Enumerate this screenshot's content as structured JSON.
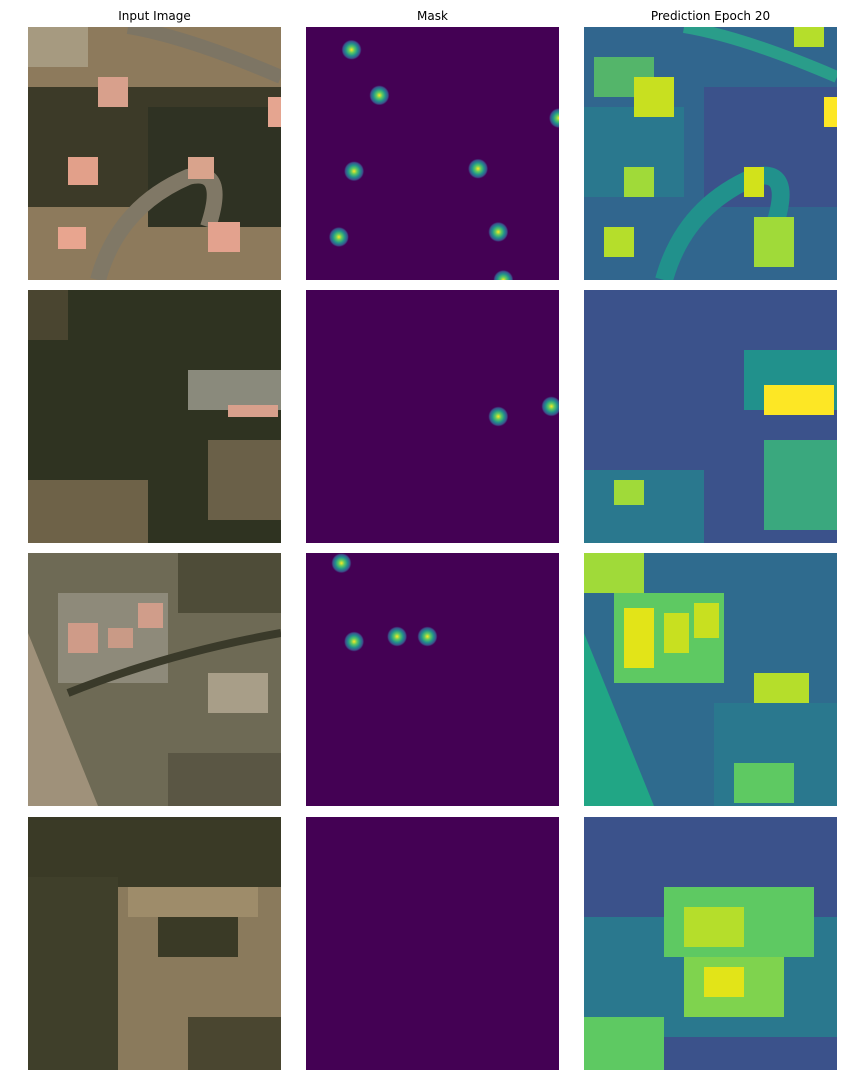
{
  "columns": [
    {
      "title": "Input Image"
    },
    {
      "title": "Mask"
    },
    {
      "title": "Prediction Epoch 20"
    }
  ],
  "colors": {
    "mask_background": "#440154",
    "viridis": [
      "#440154",
      "#3b528b",
      "#21918c",
      "#5ec962",
      "#fde725"
    ]
  },
  "rows": [
    {
      "mask_points": [
        [
          0.18,
          0.09
        ],
        [
          0.29,
          0.27
        ],
        [
          1.0,
          0.36
        ],
        [
          0.19,
          0.57
        ],
        [
          0.68,
          0.56
        ],
        [
          0.13,
          0.83
        ],
        [
          0.76,
          0.81
        ],
        [
          0.78,
          1.0
        ]
      ]
    },
    {
      "mask_points": [
        [
          0.76,
          0.5
        ],
        [
          0.97,
          0.46
        ]
      ]
    },
    {
      "mask_points": [
        [
          0.14,
          0.04
        ],
        [
          0.48,
          0.33
        ],
        [
          0.19,
          0.35
        ],
        [
          0.36,
          0.33
        ]
      ]
    },
    {
      "mask_points": []
    }
  ]
}
